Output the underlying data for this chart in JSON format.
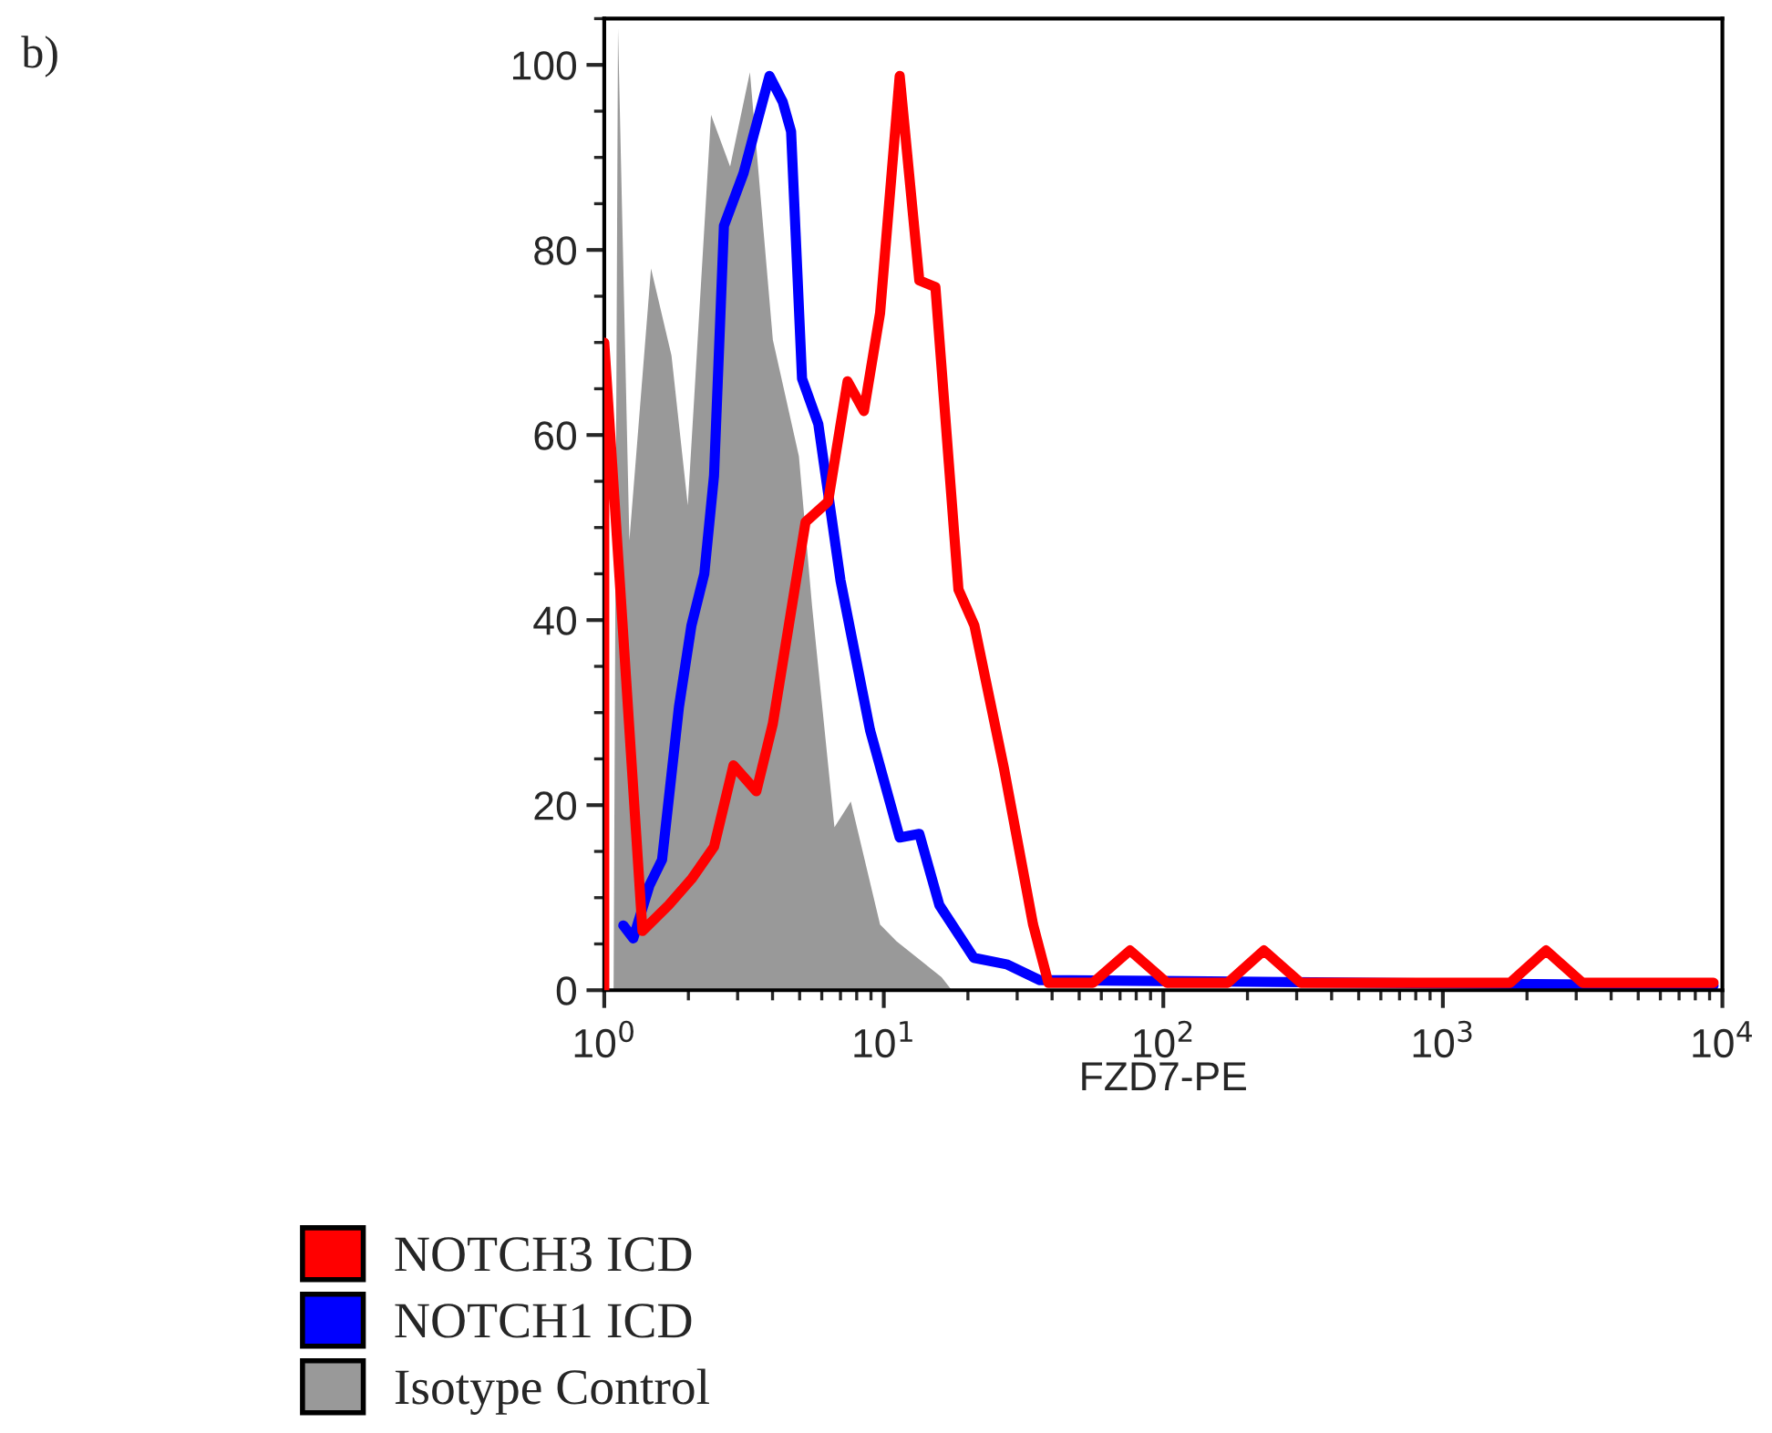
{
  "chart_data": {
    "type": "line",
    "xlabel": "FZD7-PE",
    "annotations": [
      "b)"
    ],
    "log": "x",
    "xlim": [
      1,
      10000
    ],
    "xticks": [
      {
        "value": 1,
        "label": "10$^{0}$"
      },
      {
        "value": 10,
        "label": "10$^{1}$"
      },
      {
        "value": 100,
        "label": "10$^{2}$"
      },
      {
        "value": 1000,
        "label": "10$^{3}$"
      },
      {
        "value": 10000,
        "label": "10$^{4}$"
      }
    ],
    "ylim": [
      0,
      105
    ],
    "yticks": [
      0,
      20,
      40,
      60,
      80,
      100
    ],
    "legend": "bottom",
    "grid": false,
    "series": [
      {
        "name": "NOTCH3 ICD",
        "color": "#ff0000",
        "x": [
          1.0,
          1.0,
          1.37,
          1.7,
          2.05,
          2.47,
          2.9,
          3.5,
          4.01,
          5.25,
          6.32,
          7.42,
          8.49,
          9.7,
          11.4,
          13.4,
          15.3,
          18.5,
          21.1,
          26.9,
          34.2,
          38.8,
          56,
          76,
          103,
          170,
          229,
          310,
          1740,
          2340,
          3160,
          9300
        ],
        "values": [
          0,
          70,
          6.4,
          9.2,
          12,
          15.5,
          24.3,
          21.5,
          28.8,
          50.6,
          52.8,
          65.8,
          62.6,
          73.2,
          98.8,
          76.7,
          76,
          43.3,
          39.4,
          24,
          7.1,
          0.8,
          0.8,
          4.3,
          0.8,
          0.8,
          4.3,
          0.8,
          0.8,
          4.3,
          0.8,
          0.8
        ]
      },
      {
        "name": "NOTCH1 ICD",
        "color": "#0000ff",
        "x": [
          1.17,
          1.27,
          1.45,
          1.61,
          1.85,
          2.05,
          2.28,
          2.47,
          2.68,
          3.15,
          3.45,
          3.9,
          4.35,
          4.66,
          5.1,
          5.83,
          7.0,
          8.93,
          11.4,
          13.4,
          15.8,
          21.0,
          27.5,
          36.0,
          9300
        ],
        "values": [
          7,
          5.6,
          11.3,
          14.1,
          30.6,
          39.4,
          45,
          55.6,
          82.6,
          88.3,
          92.8,
          98.8,
          96,
          92.8,
          66.1,
          61.2,
          44.3,
          28.1,
          16.5,
          16.9,
          9.2,
          3.5,
          2.8,
          1.1,
          0.5
        ]
      },
      {
        "name": "Isotype Control",
        "color": "#999999",
        "type": "area",
        "x": [
          1.08,
          1.12,
          1.23,
          1.47,
          1.74,
          1.99,
          2.41,
          2.82,
          3.32,
          4.01,
          4.97,
          5.54,
          6.66,
          7.62,
          9.7,
          11.1,
          16.1,
          17.5
        ],
        "values": [
          0,
          104,
          48.6,
          78,
          68.6,
          52.4,
          94.6,
          89,
          99.2,
          70.3,
          57.7,
          41.5,
          17.6,
          20.4,
          7.1,
          5.3,
          1.4,
          0
        ]
      }
    ]
  }
}
